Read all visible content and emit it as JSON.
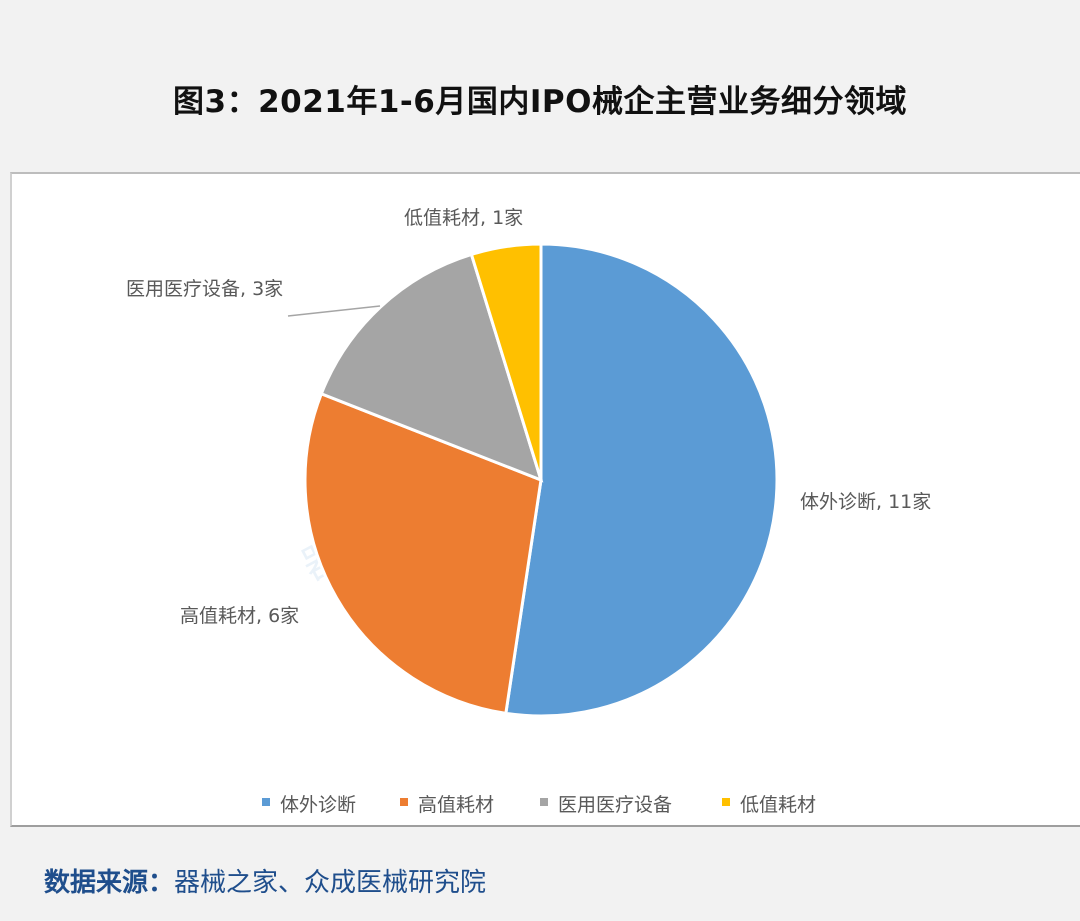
{
  "title": "图3：2021年1-6月国内IPO械企主营业务细分领域",
  "watermark": "器械之家 | Joinchain.众成",
  "source": {
    "label": "数据来源：",
    "text": "器械之家、众成医械研究院"
  },
  "chart_data": {
    "type": "pie",
    "title": "",
    "start": "top, clockwise",
    "legend_position": "bottom",
    "unit": "家",
    "slices": [
      {
        "name": "体外诊断",
        "value": 11,
        "label": "体外诊断, 11家",
        "color": "#5B9BD5"
      },
      {
        "name": "高值耗材",
        "value": 6,
        "label": "高值耗材, 6家",
        "color": "#ED7D31"
      },
      {
        "name": "医用医疗设备",
        "value": 3,
        "label": "医用医疗设备, 3家",
        "color": "#A5A5A5"
      },
      {
        "name": "低值耗材",
        "value": 1,
        "label": "低值耗材, 1家",
        "color": "#FFC000"
      }
    ]
  }
}
